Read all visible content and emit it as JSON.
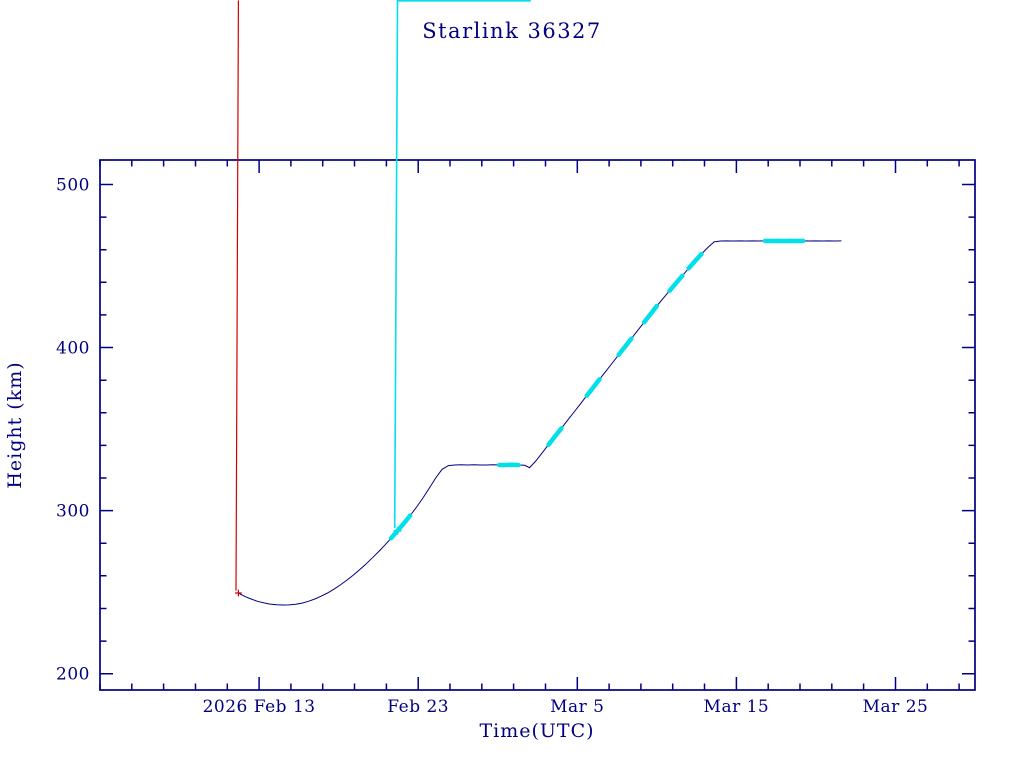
{
  "title": "Starlink 36327",
  "chart_data": {
    "type": "line",
    "title": "Starlink 36327",
    "xlabel": "Time(UTC)",
    "ylabel": "Height (km)",
    "x_unit": "days relative to 2026 Feb 13 00:00 UTC",
    "xlim": [
      -10,
      45
    ],
    "ylim": [
      190,
      515
    ],
    "x_minor_step": 2,
    "y_minor_step": 20,
    "x_ticks": [
      {
        "day": 0,
        "label": "2026 Feb 13"
      },
      {
        "day": 10,
        "label": "Feb 23"
      },
      {
        "day": 20,
        "label": "Mar  5"
      },
      {
        "day": 30,
        "label": "Mar 15"
      },
      {
        "day": 40,
        "label": "Mar 25"
      }
    ],
    "y_ticks": [
      {
        "v": 200,
        "label": "200"
      },
      {
        "v": 300,
        "label": "300"
      },
      {
        "v": 400,
        "label": "400"
      },
      {
        "v": 500,
        "label": "500"
      }
    ],
    "colors": {
      "axis": "#000080",
      "line": "#000080",
      "marker": "#d40000",
      "highlight": "#00e0e8",
      "background": "#ffffff",
      "text": "#000080"
    },
    "legend": null,
    "grid": false,
    "series": [
      {
        "name": "Height (km)",
        "points": [
          [
            -1.3,
            249.5
          ],
          [
            -0.9,
            247.4
          ],
          [
            -0.5,
            245.8
          ],
          [
            -0.1,
            244.4
          ],
          [
            0.3,
            243.4
          ],
          [
            0.7,
            242.7
          ],
          [
            1.1,
            242.3
          ],
          [
            1.5,
            242.1
          ],
          [
            1.9,
            242.2
          ],
          [
            2.3,
            242.6
          ],
          [
            2.7,
            243.3
          ],
          [
            3.1,
            244.4
          ],
          [
            3.5,
            245.8
          ],
          [
            3.9,
            247.5
          ],
          [
            4.3,
            249.5
          ],
          [
            4.7,
            251.8
          ],
          [
            5.1,
            254.4
          ],
          [
            5.5,
            257.2
          ],
          [
            5.9,
            260.3
          ],
          [
            6.3,
            263.6
          ],
          [
            6.7,
            267.1
          ],
          [
            7.1,
            270.8
          ],
          [
            7.5,
            274.7
          ],
          [
            7.9,
            278.8
          ],
          [
            8.3,
            283.1
          ],
          [
            8.7,
            287.6
          ],
          [
            9.1,
            292.2
          ],
          [
            9.5,
            297.0
          ],
          [
            9.9,
            302.2
          ],
          [
            10.3,
            307.8
          ],
          [
            10.7,
            313.8
          ],
          [
            11.1,
            320.0
          ],
          [
            11.5,
            325.3
          ],
          [
            11.9,
            327.6
          ],
          [
            12.3,
            328.0
          ],
          [
            12.7,
            328.1
          ],
          [
            13.1,
            328.0
          ],
          [
            13.5,
            328.1
          ],
          [
            13.9,
            328.0
          ],
          [
            14.3,
            328.0
          ],
          [
            14.7,
            328.1
          ],
          [
            15.1,
            328.0
          ],
          [
            15.5,
            328.0
          ],
          [
            15.9,
            328.1
          ],
          [
            16.3,
            328.0
          ],
          [
            16.7,
            327.8
          ],
          [
            17.0,
            326.3
          ],
          [
            17.4,
            330.5
          ],
          [
            17.8,
            335.5
          ],
          [
            18.2,
            340.5
          ],
          [
            18.6,
            345.5
          ],
          [
            19.0,
            350.5
          ],
          [
            19.4,
            355.5
          ],
          [
            19.8,
            360.5
          ],
          [
            20.2,
            365.5
          ],
          [
            20.6,
            370.5
          ],
          [
            21.0,
            375.5
          ],
          [
            21.4,
            380.5
          ],
          [
            21.8,
            385.5
          ],
          [
            22.2,
            390.5
          ],
          [
            22.6,
            395.5
          ],
          [
            23.0,
            400.5
          ],
          [
            23.4,
            405.5
          ],
          [
            23.8,
            410.5
          ],
          [
            24.2,
            415.5
          ],
          [
            24.6,
            420.5
          ],
          [
            25.0,
            425.5
          ],
          [
            25.4,
            430.2
          ],
          [
            25.8,
            434.8
          ],
          [
            26.2,
            439.4
          ],
          [
            26.6,
            444.0
          ],
          [
            27.0,
            448.5
          ],
          [
            27.4,
            453.0
          ],
          [
            27.8,
            457.3
          ],
          [
            28.2,
            461.3
          ],
          [
            28.6,
            464.8
          ],
          [
            29.0,
            465.3
          ],
          [
            29.4,
            465.4
          ],
          [
            29.8,
            465.3
          ],
          [
            30.2,
            465.4
          ],
          [
            30.6,
            465.3
          ],
          [
            31.0,
            465.4
          ],
          [
            31.4,
            465.3
          ],
          [
            31.8,
            465.4
          ],
          [
            32.2,
            465.3
          ],
          [
            32.6,
            465.4
          ],
          [
            33.0,
            465.3
          ],
          [
            33.4,
            465.4
          ],
          [
            33.8,
            465.3
          ],
          [
            34.2,
            465.4
          ],
          [
            34.6,
            465.3
          ],
          [
            35.0,
            465.4
          ],
          [
            35.4,
            465.3
          ],
          [
            35.8,
            465.4
          ],
          [
            36.2,
            465.3
          ],
          [
            36.6,
            465.4
          ]
        ]
      }
    ],
    "highlight_spans_days": [
      [
        8.4,
        9.4
      ],
      [
        15.3,
        16.4
      ],
      [
        18.3,
        19.1
      ],
      [
        20.8,
        21.5
      ],
      [
        22.8,
        23.4
      ],
      [
        24.4,
        25.1
      ],
      [
        26.0,
        26.7
      ],
      [
        27.2,
        27.9
      ],
      [
        31.8,
        34.0
      ]
    ],
    "marker_gaps_days": [
      [
        1.6,
        3.6
      ]
    ]
  }
}
